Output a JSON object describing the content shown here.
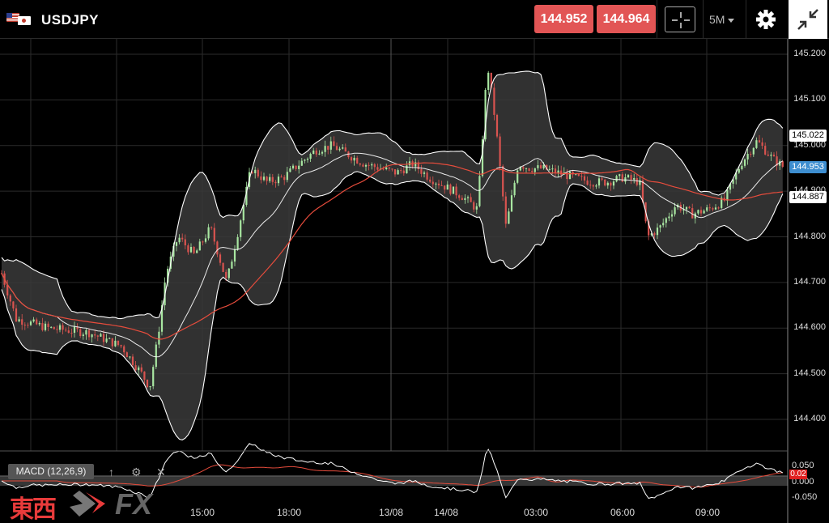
{
  "header": {
    "symbol": "USDJPY",
    "bid": "144.952",
    "ask": "144.964",
    "timeframe": "5M"
  },
  "icons": {
    "flags": "usd-jpy-flags-icon",
    "crosshair": "crosshair-icon",
    "settings": "gear-icon",
    "minimize": "minimize-icon"
  },
  "chart_data": {
    "type": "candlestick",
    "y_ticks": [
      "145.200",
      "145.100",
      "145.000",
      "144.900",
      "144.800",
      "144.700",
      "144.600",
      "144.500",
      "144.400"
    ],
    "x_ticks": [
      "15:00",
      "18:00",
      "13/08",
      "14/08",
      "03:00",
      "06:00",
      "09:00"
    ],
    "ylim": [
      144.35,
      145.23
    ],
    "labels": {
      "upper_band": "145.022",
      "last_price": "144.953",
      "lower_band": "144.887"
    },
    "colors": {
      "up": "#a8e6a1",
      "down": "#d9534f",
      "band_fill": "#3a3a3a",
      "ma": "#e74c3c",
      "mid": "#ffffff"
    }
  },
  "macd": {
    "label": "MACD (12,26,9)",
    "ticks": [
      "0.050",
      "0.000",
      "-0.050"
    ],
    "value_tag": "0.02"
  },
  "logo": {
    "kanji": "東西",
    "fx": "FX"
  }
}
